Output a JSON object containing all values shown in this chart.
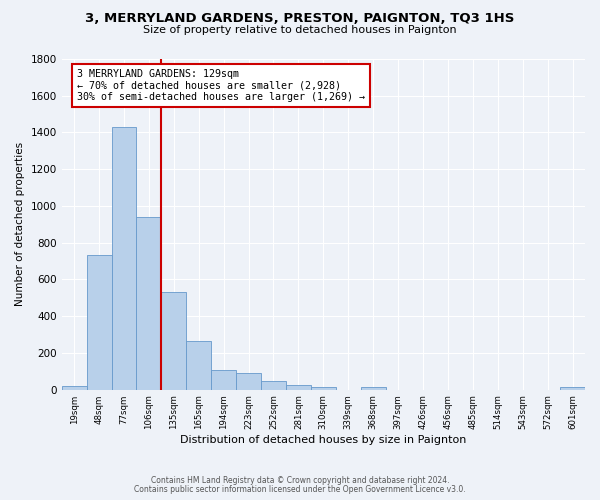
{
  "title": "3, MERRYLAND GARDENS, PRESTON, PAIGNTON, TQ3 1HS",
  "subtitle": "Size of property relative to detached houses in Paignton",
  "xlabel": "Distribution of detached houses by size in Paignton",
  "ylabel": "Number of detached properties",
  "bar_labels": [
    "19sqm",
    "48sqm",
    "77sqm",
    "106sqm",
    "135sqm",
    "165sqm",
    "194sqm",
    "223sqm",
    "252sqm",
    "281sqm",
    "310sqm",
    "339sqm",
    "368sqm",
    "397sqm",
    "426sqm",
    "456sqm",
    "485sqm",
    "514sqm",
    "543sqm",
    "572sqm",
    "601sqm"
  ],
  "bar_values": [
    20,
    735,
    1430,
    940,
    530,
    265,
    105,
    90,
    48,
    25,
    15,
    0,
    15,
    0,
    0,
    0,
    0,
    0,
    0,
    0,
    15
  ],
  "bar_color": "#b8d0ea",
  "bar_edgecolor": "#6699cc",
  "vline_color": "#cc0000",
  "annotation_text": "3 MERRYLAND GARDENS: 129sqm\n← 70% of detached houses are smaller (2,928)\n30% of semi-detached houses are larger (1,269) →",
  "annotation_box_color": "#ffffff",
  "annotation_box_edgecolor": "#cc0000",
  "ylim": [
    0,
    1800
  ],
  "yticks": [
    0,
    200,
    400,
    600,
    800,
    1000,
    1200,
    1400,
    1600,
    1800
  ],
  "footer_line1": "Contains HM Land Registry data © Crown copyright and database right 2024.",
  "footer_line2": "Contains public sector information licensed under the Open Government Licence v3.0.",
  "background_color": "#eef2f8",
  "grid_color": "#ffffff"
}
